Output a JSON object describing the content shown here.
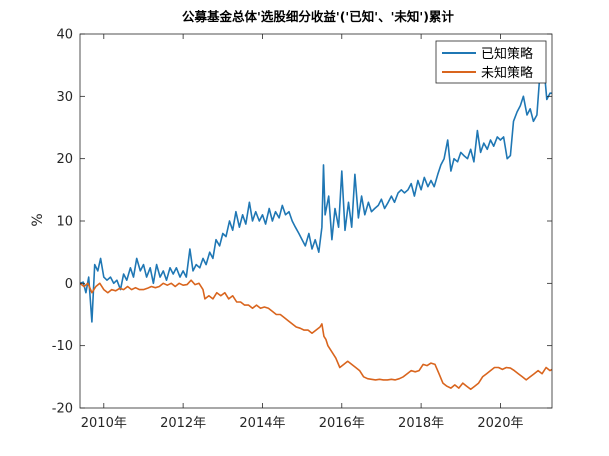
{
  "chart_data": {
    "type": "line",
    "title": "公募基金总体'选股细分收益'('已知'、'未知')累计",
    "xlabel": "",
    "ylabel": "%",
    "xlim": [
      2009.4,
      2021.3
    ],
    "ylim": [
      -20,
      40
    ],
    "x_ticks": [
      2010,
      2012,
      2014,
      2016,
      2018,
      2020
    ],
    "x_tick_labels": [
      "2010年",
      "2012年",
      "2014年",
      "2016年",
      "2018年",
      "2020年"
    ],
    "y_ticks": [
      -20,
      -10,
      0,
      10,
      20,
      30,
      40
    ],
    "y_tick_labels": [
      "-20",
      "-10",
      "0",
      "10",
      "20",
      "30",
      "40"
    ],
    "grid": false,
    "legend_position": "top-right",
    "colors": {
      "known": "#1f77b4",
      "unknown": "#d9651e"
    },
    "series": [
      {
        "name": "已知策略",
        "color": "#1f77b4",
        "points": [
          [
            2009.4,
            0.0
          ],
          [
            2009.48,
            0.2
          ],
          [
            2009.55,
            -1.5
          ],
          [
            2009.62,
            1.0
          ],
          [
            2009.7,
            -6.2
          ],
          [
            2009.77,
            3.0
          ],
          [
            2009.85,
            2.0
          ],
          [
            2009.92,
            4.0
          ],
          [
            2010.0,
            1.0
          ],
          [
            2010.08,
            0.5
          ],
          [
            2010.17,
            1.0
          ],
          [
            2010.25,
            0.0
          ],
          [
            2010.33,
            0.5
          ],
          [
            2010.42,
            -1.0
          ],
          [
            2010.5,
            1.5
          ],
          [
            2010.58,
            0.5
          ],
          [
            2010.67,
            2.5
          ],
          [
            2010.75,
            1.0
          ],
          [
            2010.83,
            4.0
          ],
          [
            2010.92,
            2.0
          ],
          [
            2011.0,
            3.0
          ],
          [
            2011.08,
            1.0
          ],
          [
            2011.17,
            2.5
          ],
          [
            2011.25,
            0.0
          ],
          [
            2011.33,
            3.0
          ],
          [
            2011.42,
            1.0
          ],
          [
            2011.5,
            2.0
          ],
          [
            2011.58,
            0.5
          ],
          [
            2011.67,
            2.5
          ],
          [
            2011.75,
            1.5
          ],
          [
            2011.83,
            2.5
          ],
          [
            2011.92,
            1.0
          ],
          [
            2012.0,
            2.0
          ],
          [
            2012.08,
            1.0
          ],
          [
            2012.17,
            5.5
          ],
          [
            2012.25,
            2.0
          ],
          [
            2012.33,
            3.0
          ],
          [
            2012.42,
            2.5
          ],
          [
            2012.5,
            4.0
          ],
          [
            2012.58,
            3.0
          ],
          [
            2012.67,
            5.0
          ],
          [
            2012.75,
            4.0
          ],
          [
            2012.83,
            7.0
          ],
          [
            2012.92,
            6.0
          ],
          [
            2013.0,
            8.0
          ],
          [
            2013.08,
            7.5
          ],
          [
            2013.17,
            10.0
          ],
          [
            2013.25,
            8.5
          ],
          [
            2013.33,
            11.5
          ],
          [
            2013.42,
            9.0
          ],
          [
            2013.5,
            11.0
          ],
          [
            2013.58,
            9.5
          ],
          [
            2013.67,
            13.0
          ],
          [
            2013.75,
            10.0
          ],
          [
            2013.83,
            11.5
          ],
          [
            2013.92,
            10.0
          ],
          [
            2014.0,
            11.0
          ],
          [
            2014.08,
            9.5
          ],
          [
            2014.17,
            12.0
          ],
          [
            2014.25,
            10.0
          ],
          [
            2014.33,
            11.5
          ],
          [
            2014.42,
            10.5
          ],
          [
            2014.5,
            12.5
          ],
          [
            2014.58,
            11.0
          ],
          [
            2014.67,
            11.5
          ],
          [
            2014.75,
            10.0
          ],
          [
            2014.83,
            9.0
          ],
          [
            2014.92,
            8.0
          ],
          [
            2015.0,
            7.0
          ],
          [
            2015.08,
            6.0
          ],
          [
            2015.17,
            8.0
          ],
          [
            2015.25,
            5.5
          ],
          [
            2015.33,
            7.0
          ],
          [
            2015.42,
            5.0
          ],
          [
            2015.5,
            9.0
          ],
          [
            2015.54,
            19.0
          ],
          [
            2015.58,
            11.0
          ],
          [
            2015.67,
            14.0
          ],
          [
            2015.75,
            7.0
          ],
          [
            2015.83,
            12.0
          ],
          [
            2015.92,
            9.0
          ],
          [
            2016.0,
            18.0
          ],
          [
            2016.08,
            8.5
          ],
          [
            2016.17,
            13.0
          ],
          [
            2016.25,
            9.0
          ],
          [
            2016.33,
            17.5
          ],
          [
            2016.42,
            10.5
          ],
          [
            2016.5,
            14.0
          ],
          [
            2016.58,
            11.0
          ],
          [
            2016.67,
            13.0
          ],
          [
            2016.75,
            11.5
          ],
          [
            2016.83,
            12.0
          ],
          [
            2016.92,
            12.5
          ],
          [
            2017.0,
            13.5
          ],
          [
            2017.08,
            12.0
          ],
          [
            2017.17,
            13.0
          ],
          [
            2017.25,
            14.0
          ],
          [
            2017.33,
            13.0
          ],
          [
            2017.42,
            14.5
          ],
          [
            2017.5,
            15.0
          ],
          [
            2017.58,
            14.5
          ],
          [
            2017.67,
            15.0
          ],
          [
            2017.75,
            16.0
          ],
          [
            2017.83,
            14.0
          ],
          [
            2017.92,
            16.5
          ],
          [
            2018.0,
            15.0
          ],
          [
            2018.08,
            17.0
          ],
          [
            2018.17,
            15.5
          ],
          [
            2018.25,
            16.5
          ],
          [
            2018.33,
            15.5
          ],
          [
            2018.42,
            17.5
          ],
          [
            2018.5,
            19.0
          ],
          [
            2018.58,
            20.0
          ],
          [
            2018.67,
            23.0
          ],
          [
            2018.75,
            18.0
          ],
          [
            2018.83,
            20.0
          ],
          [
            2018.92,
            19.5
          ],
          [
            2019.0,
            21.0
          ],
          [
            2019.08,
            20.5
          ],
          [
            2019.17,
            20.0
          ],
          [
            2019.25,
            21.5
          ],
          [
            2019.33,
            19.5
          ],
          [
            2019.42,
            24.5
          ],
          [
            2019.5,
            21.0
          ],
          [
            2019.58,
            22.5
          ],
          [
            2019.67,
            21.5
          ],
          [
            2019.75,
            23.0
          ],
          [
            2019.83,
            22.0
          ],
          [
            2019.92,
            23.5
          ],
          [
            2020.0,
            23.0
          ],
          [
            2020.08,
            23.5
          ],
          [
            2020.17,
            20.0
          ],
          [
            2020.25,
            20.5
          ],
          [
            2020.33,
            26.0
          ],
          [
            2020.42,
            27.5
          ],
          [
            2020.5,
            28.5
          ],
          [
            2020.58,
            30.0
          ],
          [
            2020.67,
            27.0
          ],
          [
            2020.75,
            28.0
          ],
          [
            2020.83,
            26.0
          ],
          [
            2020.92,
            27.0
          ],
          [
            2021.0,
            34.0
          ],
          [
            2021.08,
            36.0
          ],
          [
            2021.17,
            29.5
          ],
          [
            2021.25,
            30.5
          ],
          [
            2021.3,
            30.5
          ]
        ]
      },
      {
        "name": "未知策略",
        "color": "#d9651e",
        "points": [
          [
            2009.4,
            0.0
          ],
          [
            2009.5,
            -0.5
          ],
          [
            2009.6,
            0.0
          ],
          [
            2009.7,
            -1.5
          ],
          [
            2009.8,
            -0.5
          ],
          [
            2009.9,
            0.0
          ],
          [
            2010.0,
            -1.0
          ],
          [
            2010.1,
            -1.5
          ],
          [
            2010.2,
            -1.0
          ],
          [
            2010.3,
            -1.2
          ],
          [
            2010.4,
            -0.8
          ],
          [
            2010.5,
            -1.0
          ],
          [
            2010.6,
            -0.5
          ],
          [
            2010.7,
            -1.0
          ],
          [
            2010.8,
            -0.7
          ],
          [
            2010.9,
            -1.0
          ],
          [
            2011.0,
            -1.0
          ],
          [
            2011.1,
            -0.8
          ],
          [
            2011.2,
            -0.5
          ],
          [
            2011.3,
            -0.7
          ],
          [
            2011.4,
            -0.5
          ],
          [
            2011.5,
            0.0
          ],
          [
            2011.6,
            -0.3
          ],
          [
            2011.7,
            0.0
          ],
          [
            2011.8,
            -0.5
          ],
          [
            2011.9,
            0.0
          ],
          [
            2012.0,
            -0.3
          ],
          [
            2012.1,
            -0.2
          ],
          [
            2012.2,
            0.5
          ],
          [
            2012.3,
            -0.2
          ],
          [
            2012.4,
            0.0
          ],
          [
            2012.5,
            -1.0
          ],
          [
            2012.55,
            -2.5
          ],
          [
            2012.65,
            -2.0
          ],
          [
            2012.75,
            -2.5
          ],
          [
            2012.85,
            -1.5
          ],
          [
            2012.95,
            -2.0
          ],
          [
            2013.05,
            -1.5
          ],
          [
            2013.15,
            -2.5
          ],
          [
            2013.25,
            -2.0
          ],
          [
            2013.35,
            -3.0
          ],
          [
            2013.45,
            -3.0
          ],
          [
            2013.55,
            -3.5
          ],
          [
            2013.65,
            -3.5
          ],
          [
            2013.75,
            -4.0
          ],
          [
            2013.85,
            -3.5
          ],
          [
            2013.95,
            -4.0
          ],
          [
            2014.05,
            -3.8
          ],
          [
            2014.15,
            -4.0
          ],
          [
            2014.25,
            -4.5
          ],
          [
            2014.35,
            -5.0
          ],
          [
            2014.45,
            -5.0
          ],
          [
            2014.55,
            -5.5
          ],
          [
            2014.65,
            -6.0
          ],
          [
            2014.75,
            -6.5
          ],
          [
            2014.85,
            -7.0
          ],
          [
            2014.95,
            -7.2
          ],
          [
            2015.05,
            -7.5
          ],
          [
            2015.15,
            -7.5
          ],
          [
            2015.25,
            -8.0
          ],
          [
            2015.35,
            -7.5
          ],
          [
            2015.45,
            -7.0
          ],
          [
            2015.5,
            -6.5
          ],
          [
            2015.55,
            -8.5
          ],
          [
            2015.6,
            -9.0
          ],
          [
            2015.65,
            -10.0
          ],
          [
            2015.75,
            -11.0
          ],
          [
            2015.85,
            -12.0
          ],
          [
            2015.95,
            -13.5
          ],
          [
            2016.05,
            -13.0
          ],
          [
            2016.15,
            -12.5
          ],
          [
            2016.25,
            -13.0
          ],
          [
            2016.35,
            -13.5
          ],
          [
            2016.45,
            -14.0
          ],
          [
            2016.55,
            -15.0
          ],
          [
            2016.65,
            -15.3
          ],
          [
            2016.75,
            -15.4
          ],
          [
            2016.85,
            -15.5
          ],
          [
            2016.95,
            -15.4
          ],
          [
            2017.05,
            -15.5
          ],
          [
            2017.15,
            -15.5
          ],
          [
            2017.25,
            -15.4
          ],
          [
            2017.35,
            -15.5
          ],
          [
            2017.45,
            -15.3
          ],
          [
            2017.55,
            -15.0
          ],
          [
            2017.65,
            -14.5
          ],
          [
            2017.75,
            -14.0
          ],
          [
            2017.85,
            -14.2
          ],
          [
            2017.95,
            -14.0
          ],
          [
            2018.05,
            -13.0
          ],
          [
            2018.15,
            -13.2
          ],
          [
            2018.25,
            -12.8
          ],
          [
            2018.35,
            -13.0
          ],
          [
            2018.45,
            -14.5
          ],
          [
            2018.55,
            -16.0
          ],
          [
            2018.65,
            -16.5
          ],
          [
            2018.75,
            -16.8
          ],
          [
            2018.85,
            -16.3
          ],
          [
            2018.95,
            -16.8
          ],
          [
            2019.05,
            -16.0
          ],
          [
            2019.15,
            -16.5
          ],
          [
            2019.25,
            -17.0
          ],
          [
            2019.35,
            -16.5
          ],
          [
            2019.45,
            -16.0
          ],
          [
            2019.55,
            -15.0
          ],
          [
            2019.65,
            -14.5
          ],
          [
            2019.75,
            -14.0
          ],
          [
            2019.85,
            -13.5
          ],
          [
            2019.95,
            -13.5
          ],
          [
            2020.05,
            -13.8
          ],
          [
            2020.15,
            -13.5
          ],
          [
            2020.25,
            -13.6
          ],
          [
            2020.35,
            -14.0
          ],
          [
            2020.45,
            -14.5
          ],
          [
            2020.55,
            -15.0
          ],
          [
            2020.65,
            -15.5
          ],
          [
            2020.75,
            -15.0
          ],
          [
            2020.85,
            -14.5
          ],
          [
            2020.95,
            -14.0
          ],
          [
            2021.05,
            -14.5
          ],
          [
            2021.15,
            -13.5
          ],
          [
            2021.25,
            -14.0
          ],
          [
            2021.3,
            -13.8
          ]
        ]
      }
    ]
  }
}
